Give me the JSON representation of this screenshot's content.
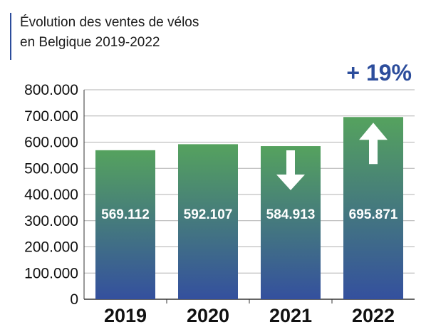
{
  "chart_data": {
    "type": "bar",
    "title": [
      "Évolution des ventes de vélos",
      "en Belgique 2019-2022"
    ],
    "annotation": "+ 19%",
    "categories": [
      "2019",
      "2020",
      "2021",
      "2022"
    ],
    "values": [
      569112,
      592107,
      584913,
      695871
    ],
    "value_labels": [
      "569.112",
      "592.107",
      "584.913",
      "695.871"
    ],
    "y_ticks": [
      {
        "value": 0,
        "label": "0"
      },
      {
        "value": 100000,
        "label": "100.000"
      },
      {
        "value": 200000,
        "label": "200.000"
      },
      {
        "value": 300000,
        "label": "300.000"
      },
      {
        "value": 400000,
        "label": "400.000"
      },
      {
        "value": 500000,
        "label": "500.000"
      },
      {
        "value": 600000,
        "label": "600.000"
      },
      {
        "value": 700000,
        "label": "700.000"
      },
      {
        "value": 800000,
        "label": "800.000"
      }
    ],
    "ylim": [
      0,
      800000
    ],
    "grid": true,
    "trend_arrows": [
      {
        "category": "2021",
        "direction": "down",
        "icon": "arrow-down-icon"
      },
      {
        "category": "2022",
        "direction": "up",
        "icon": "arrow-up-icon"
      }
    ],
    "colors": {
      "bar_top": "#55a25e",
      "bar_bottom": "#34509e",
      "accent": "#2c4d9c",
      "grid": "#b0b0b0"
    }
  }
}
